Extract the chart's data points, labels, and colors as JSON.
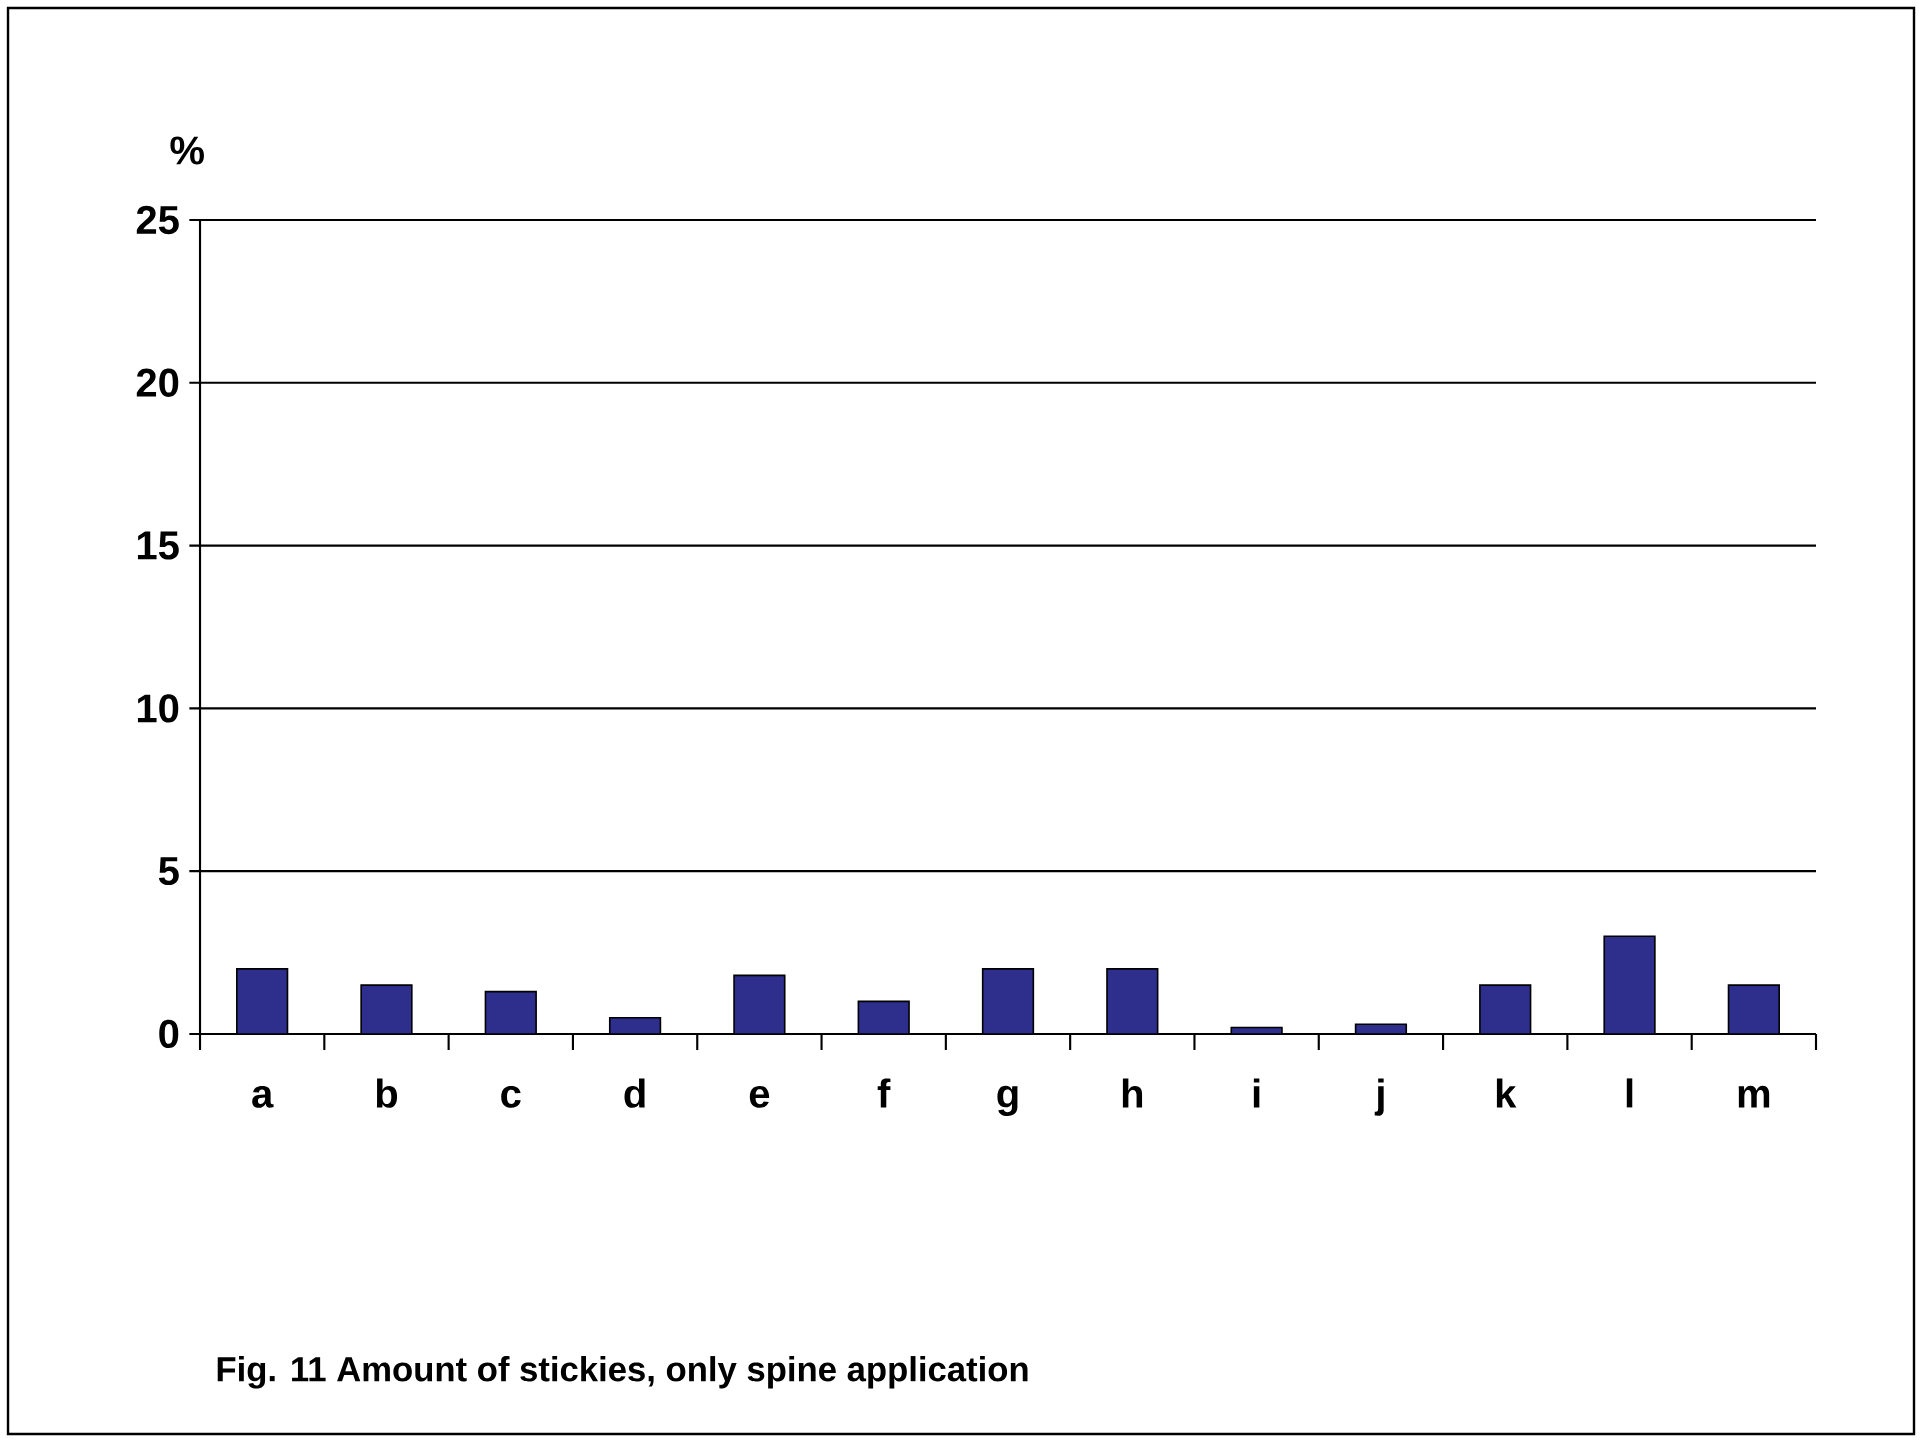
{
  "chart_data": {
    "type": "bar",
    "title": "Fig. 11  Amount of stickies, only spine application",
    "ylabel": "%",
    "categories": [
      "a",
      "b",
      "c",
      "d",
      "e",
      "f",
      "g",
      "h",
      "i",
      "j",
      "k",
      "l",
      "m"
    ],
    "values": [
      2.0,
      1.5,
      1.3,
      0.5,
      1.8,
      1.0,
      2.0,
      2.0,
      0.2,
      0.3,
      1.5,
      3.0,
      1.5
    ],
    "color": "#2e2e8c",
    "ylim": [
      0,
      25
    ],
    "yticks": [
      0,
      5,
      10,
      15,
      20,
      25
    ],
    "grid": "y"
  }
}
